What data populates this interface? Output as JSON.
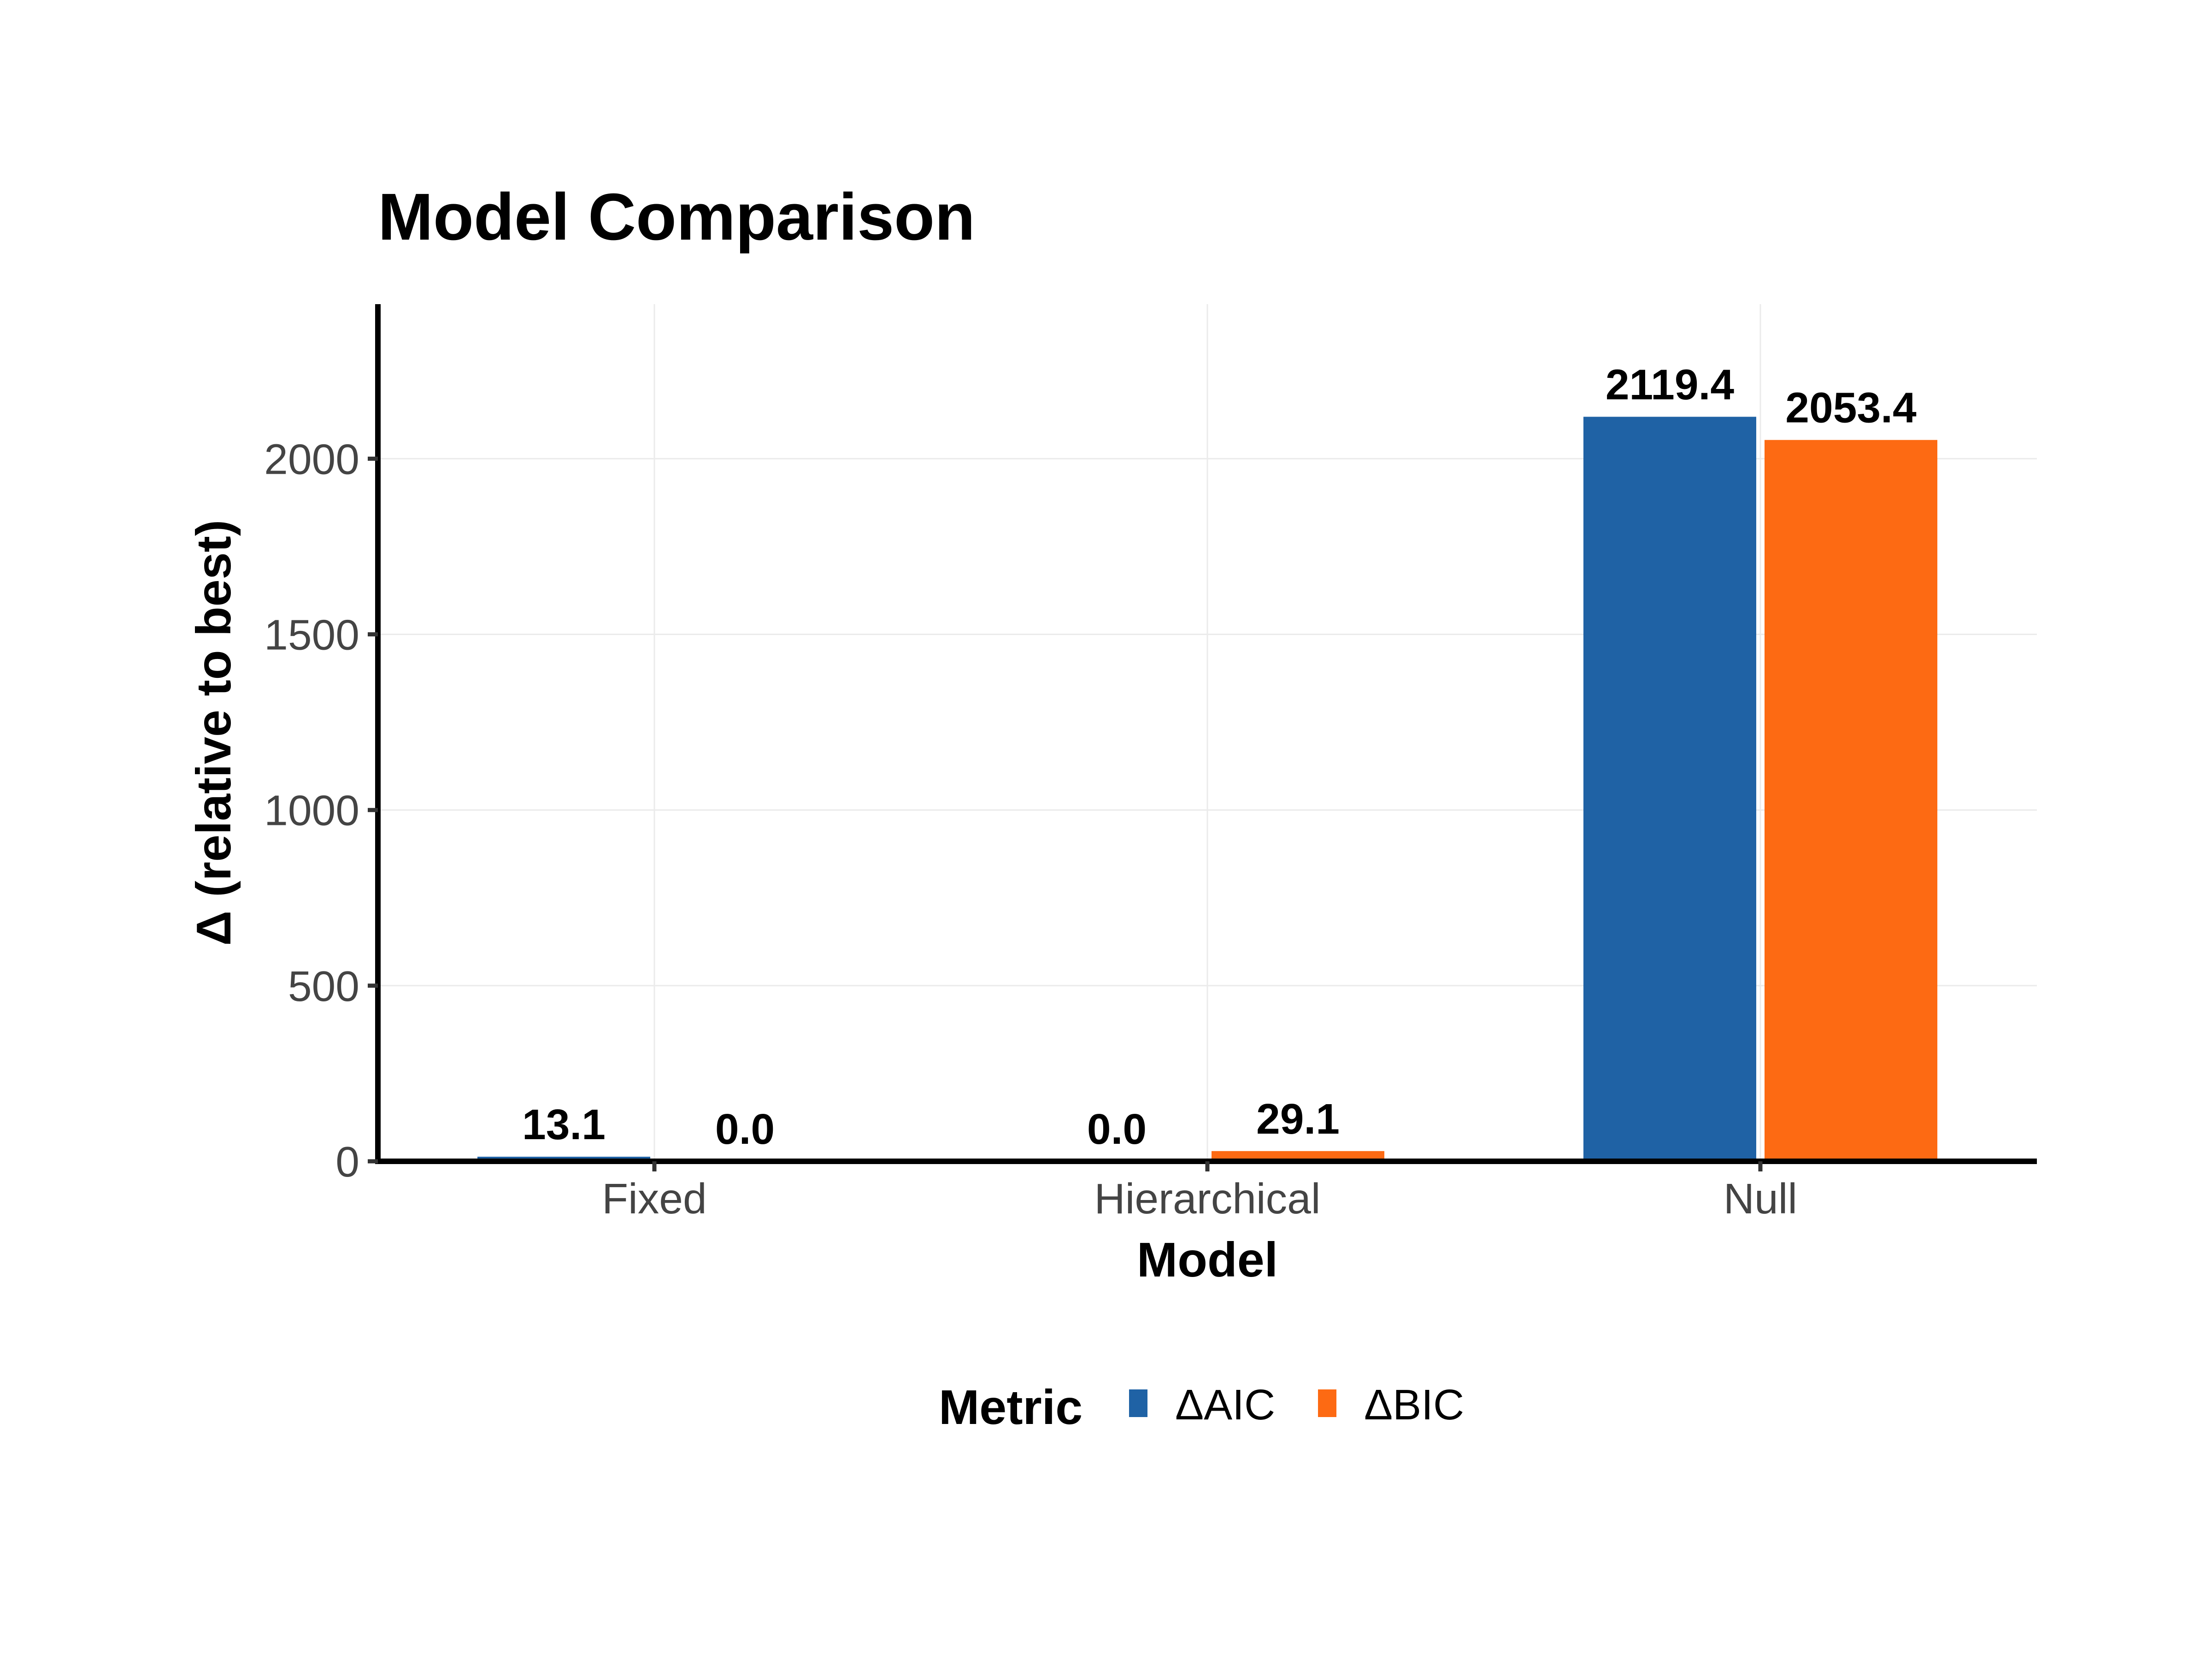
{
  "chart_data": {
    "type": "bar",
    "title": "Model Comparison",
    "xlabel": "Model",
    "ylabel": "Δ (relative to best)",
    "categories": [
      "Fixed",
      "Hierarchical",
      "Null"
    ],
    "series": [
      {
        "name": "ΔAIC",
        "color": "#1f62a5",
        "values": [
          13.1,
          0.0,
          2119.4
        ],
        "labels": [
          "13.1",
          "0.0",
          "2119.4"
        ]
      },
      {
        "name": "ΔBIC",
        "color": "#fd6a13",
        "values": [
          0.0,
          29.1,
          2053.4
        ],
        "labels": [
          "0.0",
          "29.1",
          "2053.4"
        ]
      }
    ],
    "ylim": [
      0,
      2440
    ],
    "yticks": [
      0,
      500,
      1000,
      1500,
      2000
    ],
    "ytick_labels": [
      "0",
      "500",
      "1000",
      "1500",
      "2000"
    ],
    "grid": true,
    "legend": {
      "title": "Metric",
      "position": "bottom",
      "entries": [
        "ΔAIC",
        "ΔBIC"
      ]
    }
  }
}
